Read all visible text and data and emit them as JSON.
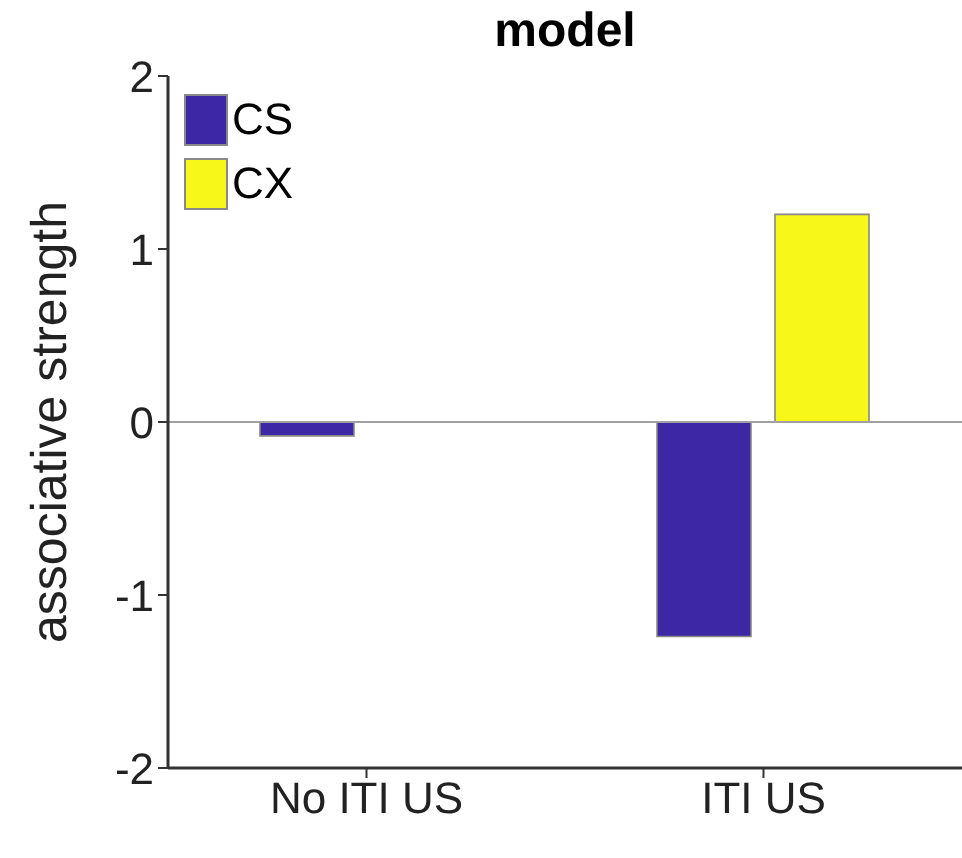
{
  "chart_data": {
    "type": "bar",
    "title": "model",
    "ylabel": "associative strength",
    "categories": [
      "No ITI US",
      "ITI US"
    ],
    "series": [
      {
        "name": "CS",
        "color": "#3d27a5",
        "values": [
          -0.08,
          -1.24
        ]
      },
      {
        "name": "CX",
        "color": "#f7f71a",
        "values": [
          0,
          1.2
        ]
      }
    ],
    "ylim": [
      -2,
      2
    ],
    "yticks": [
      -2,
      -1,
      0,
      1,
      2
    ],
    "ref_lines": [
      {
        "axis": "y",
        "value": 0,
        "color": "#a0a0a0"
      }
    ],
    "legend": "top left",
    "grid": false
  }
}
